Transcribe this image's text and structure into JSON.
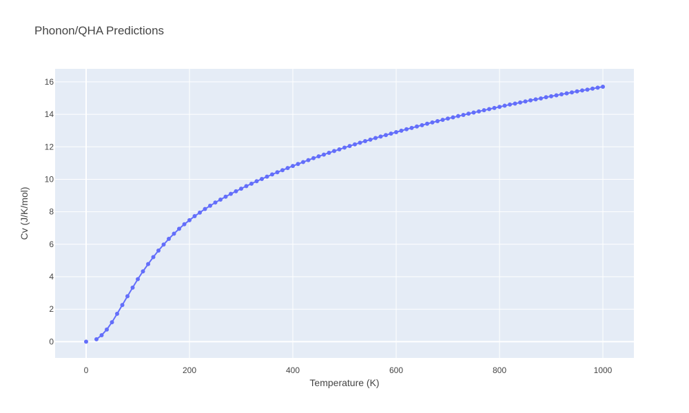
{
  "chart_data": {
    "type": "line",
    "title": "Phonon/QHA Predictions",
    "xlabel": "Temperature (K)",
    "ylabel": "Cv (J/K/mol)",
    "xlim": [
      -60,
      1060
    ],
    "ylim": [
      -1,
      16.8
    ],
    "x_ticks": [
      0,
      200,
      400,
      600,
      800,
      1000
    ],
    "y_ticks": [
      0,
      2,
      4,
      6,
      8,
      10,
      12,
      14,
      16
    ],
    "grid": true,
    "legend": "none",
    "colors": {
      "series": "#636efa",
      "plot_bg": "#e5ecf6",
      "grid": "#ffffff",
      "text": "#444444"
    },
    "series": [
      {
        "mode": "lines+markers",
        "points": [
          [
            0,
            0
          ],
          [
            20,
            0.15
          ],
          [
            30,
            0.4
          ],
          [
            40,
            0.75
          ],
          [
            50,
            1.2
          ],
          [
            60,
            1.72
          ],
          [
            70,
            2.26
          ],
          [
            80,
            2.8
          ],
          [
            90,
            3.33
          ],
          [
            100,
            3.85
          ],
          [
            110,
            4.33
          ],
          [
            120,
            4.78
          ],
          [
            130,
            5.21
          ],
          [
            140,
            5.61
          ],
          [
            150,
            5.98
          ],
          [
            160,
            6.33
          ],
          [
            170,
            6.65
          ],
          [
            180,
            6.95
          ],
          [
            190,
            7.23
          ],
          [
            200,
            7.48
          ],
          [
            210,
            7.73
          ],
          [
            220,
            7.95
          ],
          [
            230,
            8.17
          ],
          [
            240,
            8.37
          ],
          [
            250,
            8.57
          ],
          [
            260,
            8.75
          ],
          [
            270,
            8.93
          ],
          [
            280,
            9.1
          ],
          [
            290,
            9.26
          ],
          [
            300,
            9.42
          ],
          [
            310,
            9.58
          ],
          [
            320,
            9.73
          ],
          [
            330,
            9.88
          ],
          [
            340,
            10.02
          ],
          [
            350,
            10.16
          ],
          [
            360,
            10.3
          ],
          [
            370,
            10.43
          ],
          [
            380,
            10.56
          ],
          [
            390,
            10.69
          ],
          [
            400,
            10.82
          ],
          [
            410,
            10.94
          ],
          [
            420,
            11.06
          ],
          [
            430,
            11.18
          ],
          [
            440,
            11.3
          ],
          [
            450,
            11.41
          ],
          [
            460,
            11.52
          ],
          [
            470,
            11.63
          ],
          [
            480,
            11.74
          ],
          [
            490,
            11.84
          ],
          [
            500,
            11.95
          ],
          [
            510,
            12.05
          ],
          [
            520,
            12.15
          ],
          [
            530,
            12.25
          ],
          [
            540,
            12.35
          ],
          [
            550,
            12.44
          ],
          [
            560,
            12.54
          ],
          [
            570,
            12.63
          ],
          [
            580,
            12.72
          ],
          [
            590,
            12.81
          ],
          [
            600,
            12.9
          ],
          [
            610,
            12.99
          ],
          [
            620,
            13.08
          ],
          [
            630,
            13.16
          ],
          [
            640,
            13.25
          ],
          [
            650,
            13.33
          ],
          [
            660,
            13.42
          ],
          [
            670,
            13.5
          ],
          [
            680,
            13.58
          ],
          [
            690,
            13.66
          ],
          [
            700,
            13.74
          ],
          [
            710,
            13.81
          ],
          [
            720,
            13.89
          ],
          [
            730,
            13.96
          ],
          [
            740,
            14.04
          ],
          [
            750,
            14.11
          ],
          [
            760,
            14.18
          ],
          [
            770,
            14.25
          ],
          [
            780,
            14.32
          ],
          [
            790,
            14.39
          ],
          [
            800,
            14.46
          ],
          [
            810,
            14.53
          ],
          [
            820,
            14.6
          ],
          [
            830,
            14.66
          ],
          [
            840,
            14.73
          ],
          [
            850,
            14.79
          ],
          [
            860,
            14.86
          ],
          [
            870,
            14.92
          ],
          [
            880,
            14.98
          ],
          [
            890,
            15.05
          ],
          [
            900,
            15.11
          ],
          [
            910,
            15.17
          ],
          [
            920,
            15.23
          ],
          [
            930,
            15.29
          ],
          [
            940,
            15.35
          ],
          [
            950,
            15.41
          ],
          [
            960,
            15.47
          ],
          [
            970,
            15.52
          ],
          [
            980,
            15.58
          ],
          [
            990,
            15.64
          ],
          [
            1000,
            15.7
          ]
        ]
      }
    ]
  }
}
